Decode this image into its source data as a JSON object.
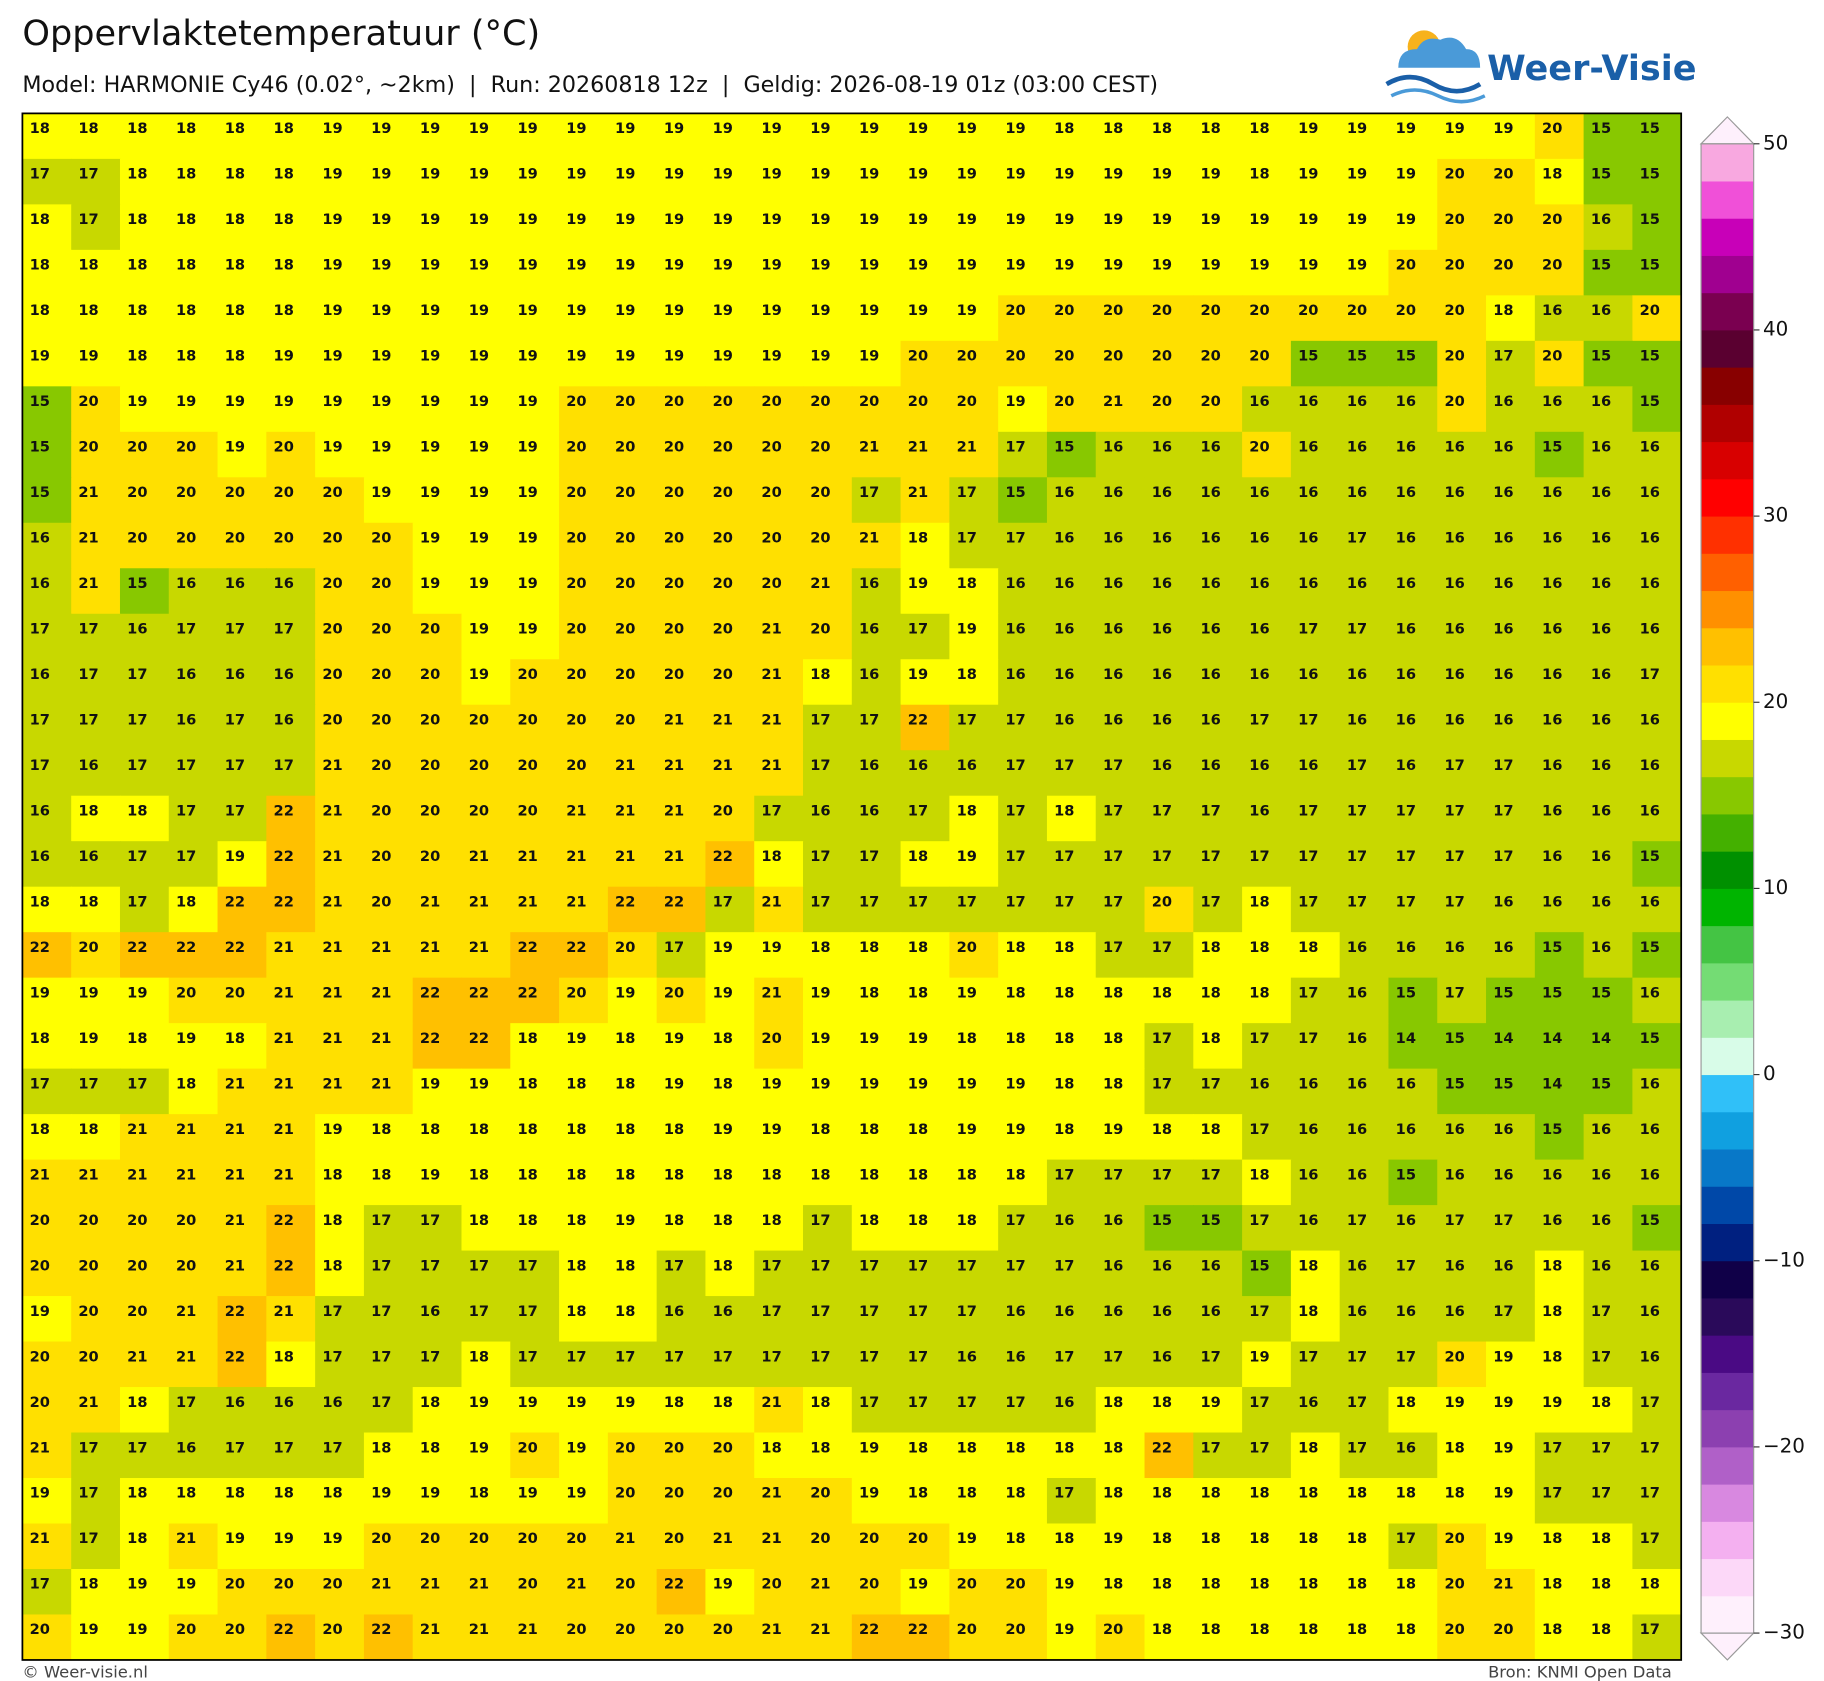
{
  "header": {
    "title": "Oppervlaktetemperatuur (°C)",
    "subtitle": "Model: HARMONIE Cy46 (0.02°, ~2km)  |  Run: 20260818 12z  |  Geldig: 2026-08-19 01z (03:00 CEST)"
  },
  "logo": {
    "text": "Weer-Visie"
  },
  "map": {
    "values": [
      [
        18,
        18,
        18,
        18,
        18,
        18,
        19,
        19,
        19,
        19,
        19,
        19,
        19,
        19,
        19,
        19,
        19,
        19,
        19,
        19,
        19,
        18,
        18,
        18,
        18,
        18,
        19,
        19,
        19,
        19,
        19,
        20,
        15,
        15
      ],
      [
        17,
        17,
        18,
        18,
        18,
        18,
        19,
        19,
        19,
        19,
        19,
        19,
        19,
        19,
        19,
        19,
        19,
        19,
        19,
        19,
        19,
        19,
        19,
        19,
        19,
        18,
        19,
        19,
        19,
        20,
        20,
        18,
        15,
        15
      ],
      [
        18,
        17,
        18,
        18,
        18,
        18,
        19,
        19,
        19,
        19,
        19,
        19,
        19,
        19,
        19,
        19,
        19,
        19,
        19,
        19,
        19,
        19,
        19,
        19,
        19,
        19,
        19,
        19,
        19,
        20,
        20,
        20,
        16,
        15
      ],
      [
        18,
        18,
        18,
        18,
        18,
        18,
        19,
        19,
        19,
        19,
        19,
        19,
        19,
        19,
        19,
        19,
        19,
        19,
        19,
        19,
        19,
        19,
        19,
        19,
        19,
        19,
        19,
        19,
        20,
        20,
        20,
        20,
        15,
        15
      ],
      [
        18,
        18,
        18,
        18,
        18,
        18,
        19,
        19,
        19,
        19,
        19,
        19,
        19,
        19,
        19,
        19,
        19,
        19,
        19,
        19,
        20,
        20,
        20,
        20,
        20,
        20,
        20,
        20,
        20,
        20,
        18,
        16,
        16,
        20
      ],
      [
        19,
        19,
        18,
        18,
        18,
        19,
        19,
        19,
        19,
        19,
        19,
        19,
        19,
        19,
        19,
        19,
        19,
        19,
        20,
        20,
        20,
        20,
        20,
        20,
        20,
        20,
        15,
        15,
        15,
        20,
        17,
        20,
        15,
        15
      ],
      [
        15,
        20,
        19,
        19,
        19,
        19,
        19,
        19,
        19,
        19,
        19,
        20,
        20,
        20,
        20,
        20,
        20,
        20,
        20,
        20,
        19,
        20,
        21,
        20,
        20,
        16,
        16,
        16,
        16,
        20,
        16,
        16,
        16,
        15
      ],
      [
        15,
        20,
        20,
        20,
        19,
        20,
        19,
        19,
        19,
        19,
        19,
        20,
        20,
        20,
        20,
        20,
        20,
        21,
        21,
        21,
        17,
        15,
        16,
        16,
        16,
        20,
        16,
        16,
        16,
        16,
        16,
        15,
        16,
        16
      ],
      [
        15,
        21,
        20,
        20,
        20,
        20,
        20,
        19,
        19,
        19,
        19,
        20,
        20,
        20,
        20,
        20,
        20,
        17,
        21,
        17,
        15,
        16,
        16,
        16,
        16,
        16,
        16,
        16,
        16,
        16,
        16,
        16,
        16,
        16
      ],
      [
        16,
        21,
        20,
        20,
        20,
        20,
        20,
        20,
        19,
        19,
        19,
        20,
        20,
        20,
        20,
        20,
        20,
        21,
        18,
        17,
        17,
        16,
        16,
        16,
        16,
        16,
        16,
        17,
        16,
        16,
        16,
        16,
        16,
        16
      ],
      [
        16,
        21,
        15,
        16,
        16,
        16,
        20,
        20,
        19,
        19,
        19,
        20,
        20,
        20,
        20,
        20,
        21,
        16,
        19,
        18,
        16,
        16,
        16,
        16,
        16,
        16,
        16,
        16,
        16,
        16,
        16,
        16,
        16,
        16
      ],
      [
        17,
        17,
        16,
        17,
        17,
        17,
        20,
        20,
        20,
        19,
        19,
        20,
        20,
        20,
        20,
        21,
        20,
        16,
        17,
        19,
        16,
        16,
        16,
        16,
        16,
        16,
        17,
        17,
        16,
        16,
        16,
        16,
        16,
        16
      ],
      [
        16,
        17,
        17,
        16,
        16,
        16,
        20,
        20,
        20,
        19,
        20,
        20,
        20,
        20,
        20,
        21,
        18,
        16,
        19,
        18,
        16,
        16,
        16,
        16,
        16,
        16,
        16,
        16,
        16,
        16,
        16,
        16,
        16,
        17
      ],
      [
        17,
        17,
        17,
        16,
        17,
        16,
        20,
        20,
        20,
        20,
        20,
        20,
        20,
        21,
        21,
        21,
        17,
        17,
        22,
        17,
        17,
        16,
        16,
        16,
        16,
        17,
        17,
        16,
        16,
        16,
        16,
        16,
        16,
        16
      ],
      [
        17,
        16,
        17,
        17,
        17,
        17,
        21,
        20,
        20,
        20,
        20,
        20,
        21,
        21,
        21,
        21,
        17,
        16,
        16,
        16,
        17,
        17,
        17,
        16,
        16,
        16,
        16,
        17,
        16,
        17,
        17,
        16,
        16,
        16
      ],
      [
        16,
        18,
        18,
        17,
        17,
        22,
        21,
        20,
        20,
        20,
        20,
        21,
        21,
        21,
        20,
        17,
        16,
        16,
        17,
        18,
        17,
        18,
        17,
        17,
        17,
        16,
        17,
        17,
        17,
        17,
        17,
        16,
        16,
        16
      ],
      [
        16,
        16,
        17,
        17,
        19,
        22,
        21,
        20,
        20,
        21,
        21,
        21,
        21,
        21,
        22,
        18,
        17,
        17,
        18,
        19,
        17,
        17,
        17,
        17,
        17,
        17,
        17,
        17,
        17,
        17,
        17,
        16,
        16,
        15
      ],
      [
        18,
        18,
        17,
        18,
        22,
        22,
        21,
        20,
        21,
        21,
        21,
        21,
        22,
        22,
        17,
        21,
        17,
        17,
        17,
        17,
        17,
        17,
        17,
        20,
        17,
        18,
        17,
        17,
        17,
        17,
        16,
        16,
        16,
        16
      ],
      [
        22,
        20,
        22,
        22,
        22,
        21,
        21,
        21,
        21,
        21,
        22,
        22,
        20,
        17,
        19,
        19,
        18,
        18,
        18,
        20,
        18,
        18,
        17,
        17,
        18,
        18,
        18,
        16,
        16,
        16,
        16,
        15,
        16,
        15
      ],
      [
        19,
        19,
        19,
        20,
        20,
        21,
        21,
        21,
        22,
        22,
        22,
        20,
        19,
        20,
        19,
        21,
        19,
        18,
        18,
        19,
        18,
        18,
        18,
        18,
        18,
        18,
        17,
        16,
        15,
        17,
        15,
        15,
        15,
        16
      ],
      [
        18,
        19,
        18,
        19,
        18,
        21,
        21,
        21,
        22,
        22,
        18,
        19,
        18,
        19,
        18,
        20,
        19,
        19,
        19,
        18,
        18,
        18,
        18,
        17,
        18,
        17,
        17,
        16,
        14,
        15,
        14,
        14,
        14,
        15
      ],
      [
        17,
        17,
        17,
        18,
        21,
        21,
        21,
        21,
        19,
        19,
        18,
        18,
        18,
        19,
        18,
        19,
        19,
        19,
        19,
        19,
        19,
        18,
        18,
        17,
        17,
        16,
        16,
        16,
        16,
        15,
        15,
        14,
        15,
        16
      ],
      [
        18,
        18,
        21,
        21,
        21,
        21,
        19,
        18,
        18,
        18,
        18,
        18,
        18,
        18,
        19,
        19,
        18,
        18,
        18,
        19,
        19,
        18,
        19,
        18,
        18,
        17,
        16,
        16,
        16,
        16,
        16,
        15,
        16,
        16
      ],
      [
        21,
        21,
        21,
        21,
        21,
        21,
        18,
        18,
        19,
        18,
        18,
        18,
        18,
        18,
        18,
        18,
        18,
        18,
        18,
        18,
        18,
        17,
        17,
        17,
        17,
        18,
        16,
        16,
        15,
        16,
        16,
        16,
        16,
        16
      ],
      [
        20,
        20,
        20,
        20,
        21,
        22,
        18,
        17,
        17,
        18,
        18,
        18,
        19,
        18,
        18,
        18,
        17,
        18,
        18,
        18,
        17,
        16,
        16,
        15,
        15,
        17,
        16,
        17,
        16,
        17,
        17,
        16,
        16,
        15
      ],
      [
        20,
        20,
        20,
        20,
        21,
        22,
        18,
        17,
        17,
        17,
        17,
        18,
        18,
        17,
        18,
        17,
        17,
        17,
        17,
        17,
        17,
        17,
        16,
        16,
        16,
        15,
        18,
        16,
        17,
        16,
        16,
        18,
        16,
        16
      ],
      [
        19,
        20,
        20,
        21,
        22,
        21,
        17,
        17,
        16,
        17,
        17,
        18,
        18,
        16,
        16,
        17,
        17,
        17,
        17,
        17,
        16,
        16,
        16,
        16,
        16,
        17,
        18,
        16,
        16,
        16,
        17,
        18,
        17,
        16
      ],
      [
        20,
        20,
        21,
        21,
        22,
        18,
        17,
        17,
        17,
        18,
        17,
        17,
        17,
        17,
        17,
        17,
        17,
        17,
        17,
        16,
        16,
        17,
        17,
        16,
        17,
        19,
        17,
        17,
        17,
        20,
        19,
        18,
        17,
        16
      ],
      [
        20,
        21,
        18,
        17,
        16,
        16,
        16,
        17,
        18,
        19,
        19,
        19,
        19,
        18,
        18,
        21,
        18,
        17,
        17,
        17,
        17,
        16,
        18,
        18,
        19,
        17,
        16,
        17,
        18,
        19,
        19,
        19,
        18,
        17
      ],
      [
        21,
        17,
        17,
        16,
        17,
        17,
        17,
        18,
        18,
        19,
        20,
        19,
        20,
        20,
        20,
        18,
        18,
        19,
        18,
        18,
        18,
        18,
        18,
        22,
        17,
        17,
        18,
        17,
        16,
        18,
        19,
        17,
        17,
        17
      ],
      [
        19,
        17,
        18,
        18,
        18,
        18,
        18,
        19,
        19,
        18,
        19,
        19,
        20,
        20,
        20,
        21,
        20,
        19,
        18,
        18,
        18,
        17,
        18,
        18,
        18,
        18,
        18,
        18,
        18,
        18,
        19,
        17,
        17,
        17
      ],
      [
        21,
        17,
        18,
        21,
        19,
        19,
        19,
        20,
        20,
        20,
        20,
        20,
        21,
        20,
        21,
        21,
        20,
        20,
        20,
        19,
        18,
        18,
        19,
        18,
        18,
        18,
        18,
        18,
        17,
        20,
        19,
        18,
        18,
        17
      ],
      [
        17,
        18,
        19,
        19,
        20,
        20,
        20,
        21,
        21,
        21,
        20,
        21,
        20,
        22,
        19,
        20,
        21,
        20,
        19,
        20,
        20,
        19,
        18,
        18,
        18,
        18,
        18,
        18,
        18,
        20,
        21,
        18,
        18,
        18
      ],
      [
        20,
        19,
        19,
        20,
        20,
        22,
        20,
        22,
        21,
        21,
        21,
        20,
        20,
        20,
        20,
        21,
        21,
        22,
        22,
        20,
        20,
        19,
        20,
        18,
        18,
        18,
        18,
        18,
        18,
        20,
        20,
        18,
        18,
        17
      ]
    ]
  },
  "colorbar": {
    "clim": [
      -30,
      50
    ],
    "colors": [
      "#fef0fc",
      "#fcd8f8",
      "#f4b0f0",
      "#d888e0",
      "#b060c8",
      "#8c40b0",
      "#6a28a0",
      "#4a0a84",
      "#2a0a5a",
      "#100048",
      "#002080",
      "#0048a8",
      "#0878c8",
      "#10a0e0",
      "#30c0f8",
      "#d8fce8",
      "#a8eeb0",
      "#74dc74",
      "#44c444",
      "#00b400",
      "#009000",
      "#44b000",
      "#88c800",
      "#c8d800",
      "#ffff00",
      "#ffe000",
      "#ffc000",
      "#ff9000",
      "#ff6000",
      "#ff3000",
      "#ff0000",
      "#d80000",
      "#b00000",
      "#880000",
      "#5a0030",
      "#7a0050",
      "#a00090",
      "#c800b8",
      "#f050d8",
      "#f8a8e0"
    ],
    "ticks": [
      50,
      40,
      30,
      20,
      10,
      0,
      {
        "value": -10,
        "label": "−10"
      },
      {
        "value": -20,
        "label": "−20"
      },
      {
        "value": -30,
        "label": "−30"
      }
    ]
  },
  "footer": {
    "left": "© Weer-visie.nl",
    "right": "Bron: KNMI Open Data"
  }
}
